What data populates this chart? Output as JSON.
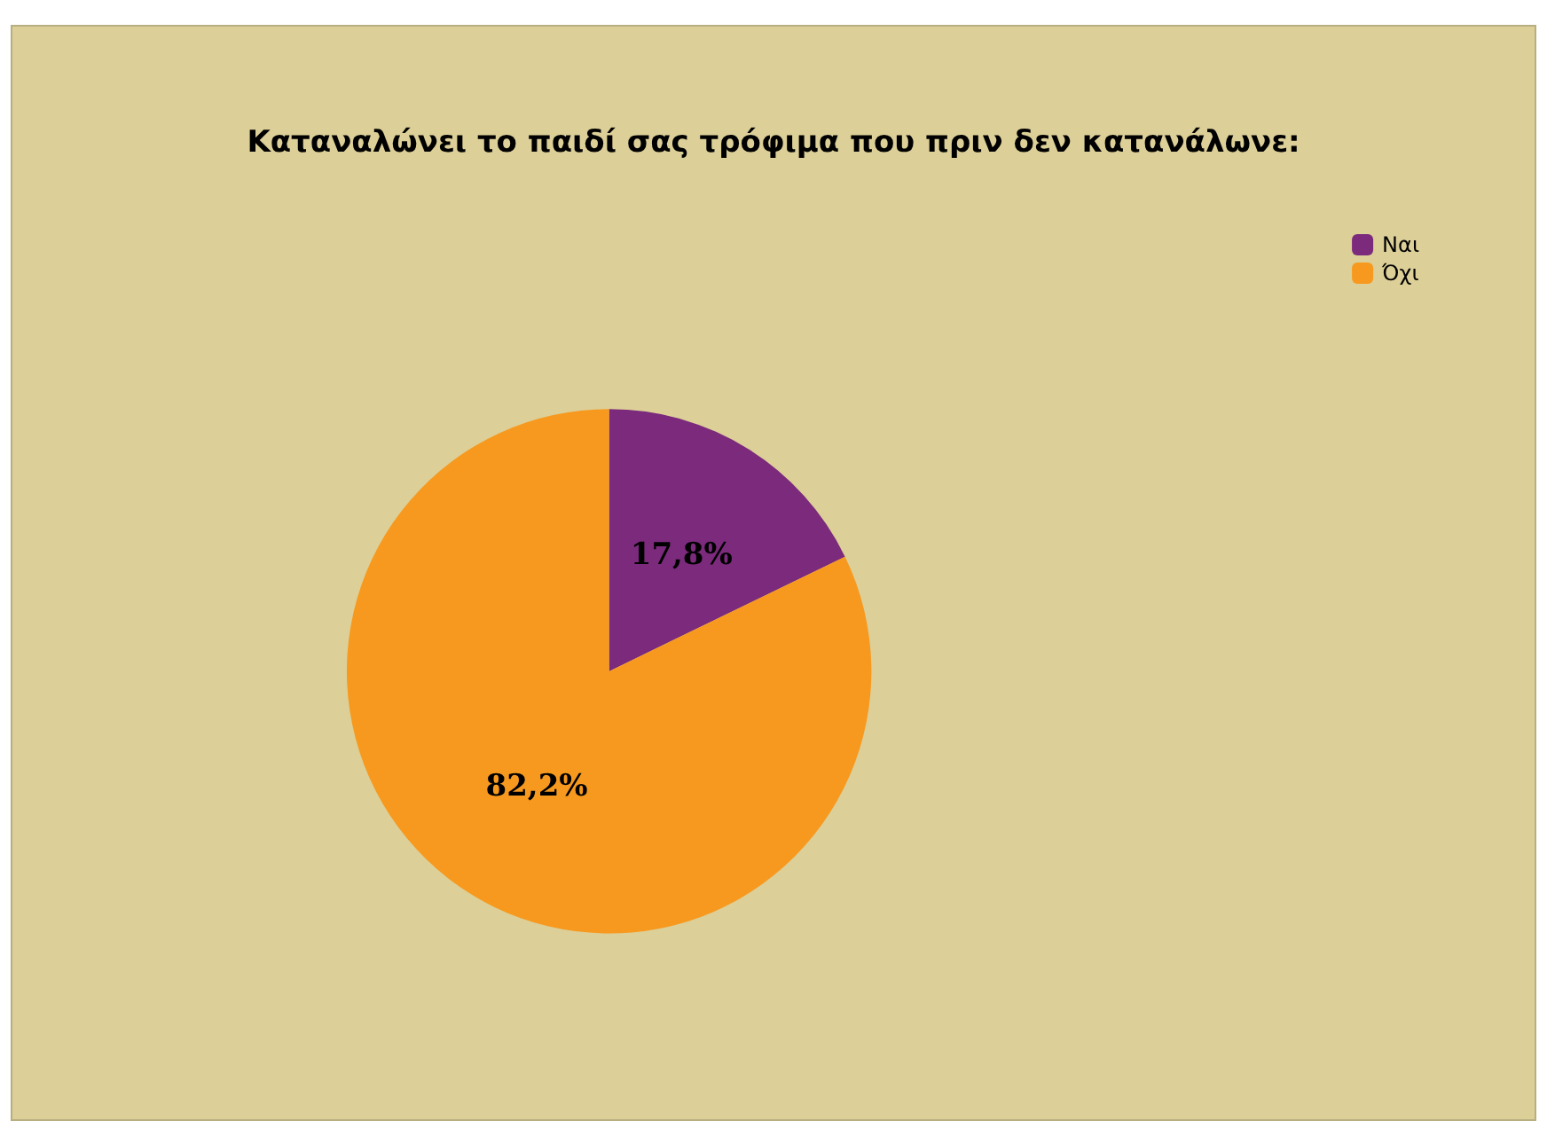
{
  "chart_data": {
    "type": "pie",
    "title": "Καταναλώνει το παιδί σας τρόφιμα που πριν δεν κατανάλωνε:",
    "categories": [
      "Ναι",
      "Όχι"
    ],
    "values": [
      17.8,
      82.2
    ],
    "colors": [
      "#7b2a7c",
      "#f7991e"
    ],
    "value_labels": [
      "17,8%",
      "82,2%"
    ],
    "legend": "top right"
  }
}
